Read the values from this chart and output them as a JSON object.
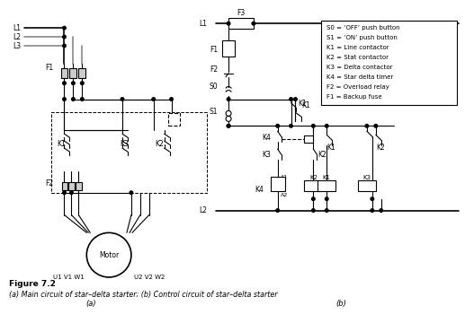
{
  "fig_label": "Figure 7.2",
  "fig_caption": "(a) Main circuit of star–delta starter; (b) Control circuit of star–delta starter",
  "background_color": "#ffffff",
  "line_color": "#000000",
  "gray_color": "#888888",
  "legend_items": [
    "S0 = ‘OFF’ push button",
    "S1 = ‘ON’ push button",
    "K1 = Line contactor",
    "K2 = Stat contactor",
    "K3 = Delta contactor",
    "K4 = Star delta timer",
    "F2 = Overload relay",
    "F1 = Backup fuse"
  ]
}
